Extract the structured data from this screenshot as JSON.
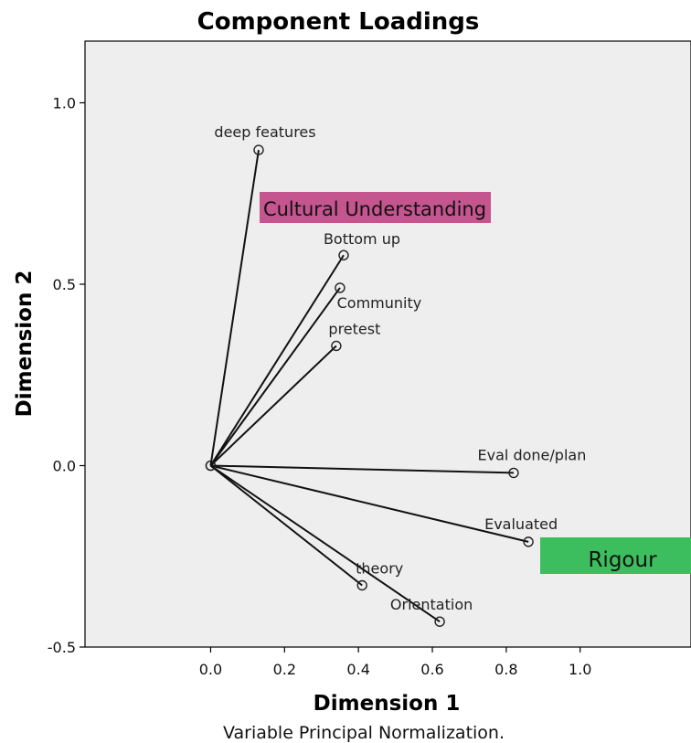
{
  "chart_data": {
    "type": "scatter",
    "title": "Component Loadings",
    "xlabel": "Dimension 1",
    "ylabel": "Dimension 2",
    "footnote": "Variable Principal Normalization.",
    "xlim": [
      -0.34,
      1.3
    ],
    "ylim": [
      -0.5,
      1.17
    ],
    "xticks": [
      0.0,
      0.2,
      0.4,
      0.6,
      0.8,
      1.0
    ],
    "xtick_labels": [
      "0.0",
      "0.2",
      "0.4",
      "0.6",
      "0.8",
      "1.0"
    ],
    "yticks": [
      -0.5,
      0.0,
      0.5,
      1.0
    ],
    "ytick_labels": [
      "-0.5",
      "0.0",
      "0.5",
      "1.0"
    ],
    "grid": false,
    "vectors_from_origin": true,
    "points": [
      {
        "label": "deep features",
        "x": 0.13,
        "y": 0.87
      },
      {
        "label": "Bottom up",
        "x": 0.36,
        "y": 0.58
      },
      {
        "label": "Community",
        "x": 0.35,
        "y": 0.49
      },
      {
        "label": "pretest",
        "x": 0.34,
        "y": 0.33
      },
      {
        "label": "Eval done/plan",
        "x": 0.82,
        "y": -0.02
      },
      {
        "label": "Evaluated",
        "x": 0.86,
        "y": -0.21
      },
      {
        "label": "theory",
        "x": 0.41,
        "y": -0.33
      },
      {
        "label": "Orientation",
        "x": 0.62,
        "y": -0.43
      }
    ],
    "annotations": [
      {
        "text": "Cultural Understanding",
        "color": "#c4558f"
      },
      {
        "text": "Rigour",
        "color": "#3dbe5e"
      }
    ],
    "plot_background": "#eeeeee"
  }
}
